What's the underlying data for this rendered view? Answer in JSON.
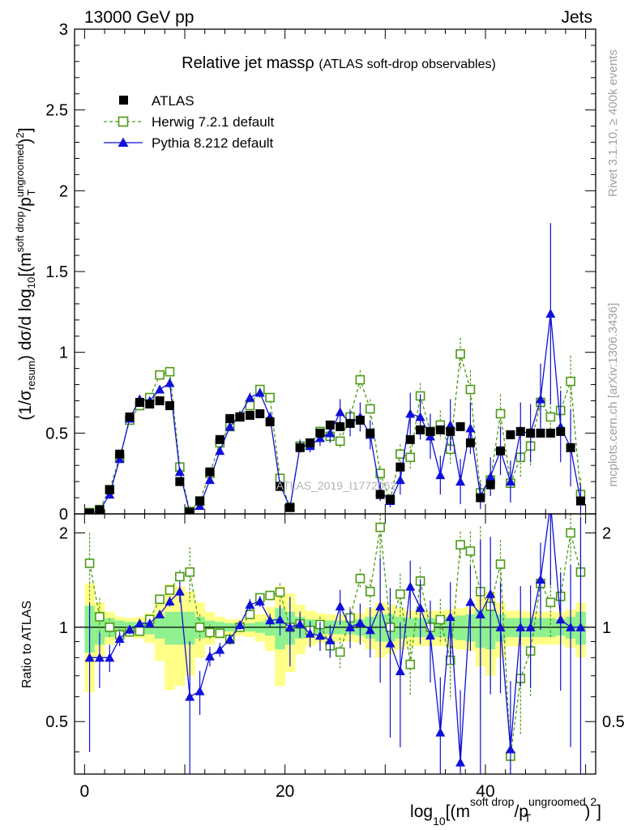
{
  "header": {
    "left": "13000 GeV pp",
    "right": "Jets",
    "side_rivet": "Rivet 3.1.10, ≥ 400k events",
    "side_mcplots": "mcplots.cern.ch [arXiv:1306.3436]",
    "watermark": "ATLAS_2019_I1772062"
  },
  "chart_data": {
    "type": "line",
    "title": "Relative jet massρ",
    "subtitle": "(ATLAS soft-drop observables)",
    "ylabel": "(1/σ_resum) dσ/d log10[(m^soft drop/pT^ungroomed)^2]",
    "ylabel_parts": {
      "a": "(1/σ",
      "a_sub": "resum",
      "b": ") dσ/d log",
      "b_sub": "10",
      "c": "[(m",
      "c_sup": "soft drop",
      "d": "/p",
      "d_sup": "ungroomed",
      "d_sub": "T",
      "e": ")",
      "e_sup": "2",
      "f": "]"
    },
    "xlabel_parts": {
      "a": "log",
      "a_sub": "10",
      "b": "[(m",
      "b_sup": "soft drop",
      "c": "/p",
      "c_sup": "ungroomed",
      "c_sub": "T",
      "d": ")",
      "d_sup": "2",
      "e": "]"
    },
    "ratio_ylabel": "Ratio to ATLAS",
    "xlim": [
      -1,
      51
    ],
    "ylim": [
      0,
      3
    ],
    "ratio_ylim": [
      0.34,
      2.3
    ],
    "x_ticks": [
      0,
      20,
      40
    ],
    "x_tick_labels": [
      "0",
      "20",
      "40"
    ],
    "y_ticks": [
      0,
      0.5,
      1,
      1.5,
      2,
      2.5,
      3
    ],
    "y_tick_labels": [
      "0",
      "0.5",
      "1",
      "1.5",
      "2",
      "2.5",
      "3"
    ],
    "ratio_y_ticks": [
      0.5,
      1,
      2
    ],
    "ratio_y_tick_labels": [
      "0.5",
      "1",
      "2"
    ],
    "legend": [
      "ATLAS",
      "Herwig 7.2.1 default",
      "Pythia 8.212 default"
    ],
    "colors": {
      "atlas": "#000000",
      "herwig": "#4c9a16",
      "pythia": "#1010d8",
      "band_inner": "#8ef08e",
      "band_outer": "#ffff88"
    },
    "x": [
      0.5,
      1.5,
      2.5,
      3.5,
      4.5,
      5.5,
      6.5,
      7.5,
      8.5,
      9.5,
      10.5,
      11.5,
      12.5,
      13.5,
      14.5,
      15.5,
      16.5,
      17.5,
      18.5,
      19.5,
      20.5,
      21.5,
      22.5,
      23.5,
      24.5,
      25.5,
      26.5,
      27.5,
      28.5,
      29.5,
      30.5,
      31.5,
      32.5,
      33.5,
      34.5,
      35.5,
      36.5,
      37.5,
      38.5,
      39.5,
      40.5,
      41.5,
      42.5,
      43.5,
      44.5,
      45.5,
      46.5,
      47.5,
      48.5,
      49.5
    ],
    "series": [
      {
        "name": "ATLAS",
        "values": [
          0.005,
          0.025,
          0.15,
          0.37,
          0.6,
          0.69,
          0.68,
          0.7,
          0.67,
          0.2,
          0.01,
          0.08,
          0.26,
          0.46,
          0.59,
          0.6,
          0.61,
          0.62,
          0.57,
          0.17,
          0.04,
          0.41,
          0.44,
          0.5,
          0.55,
          0.54,
          0.56,
          0.58,
          0.5,
          0.12,
          0.09,
          0.29,
          0.46,
          0.52,
          0.51,
          0.52,
          0.51,
          0.54,
          0.44,
          0.1,
          0.18,
          0.39,
          0.49,
          0.51,
          0.5,
          0.5,
          0.5,
          0.51,
          0.41,
          0.08
        ]
      },
      {
        "name": "Herwig 7.2.1 default",
        "values": [
          0.008,
          0.027,
          0.15,
          0.35,
          0.58,
          0.67,
          0.72,
          0.86,
          0.88,
          0.29,
          0.015,
          0.08,
          0.25,
          0.44,
          0.54,
          0.6,
          0.67,
          0.77,
          0.72,
          0.22,
          0.04,
          0.42,
          0.43,
          0.51,
          0.48,
          0.45,
          0.6,
          0.83,
          0.65,
          0.25,
          0.09,
          0.37,
          0.35,
          0.73,
          0.51,
          0.55,
          0.4,
          0.99,
          0.77,
          0.13,
          0.21,
          0.62,
          0.19,
          0.35,
          0.42,
          0.69,
          0.6,
          0.64,
          0.82,
          0.12
        ]
      },
      {
        "name": "Pythia 8.212 default",
        "values": [
          0.004,
          0.02,
          0.12,
          0.34,
          0.59,
          0.71,
          0.7,
          0.77,
          0.81,
          0.26,
          0.006,
          0.05,
          0.21,
          0.39,
          0.54,
          0.61,
          0.72,
          0.75,
          0.6,
          0.18,
          0.04,
          0.42,
          0.42,
          0.47,
          0.5,
          0.63,
          0.56,
          0.6,
          0.49,
          0.14,
          0.08,
          0.21,
          0.62,
          0.6,
          0.48,
          0.24,
          0.55,
          0.2,
          0.53,
          0.11,
          0.23,
          0.39,
          0.2,
          0.51,
          0.5,
          0.71,
          1.24,
          0.54,
          0.41,
          0.08
        ]
      }
    ],
    "errors": {
      "herwig": [
        0.002,
        0.004,
        0.01,
        0.015,
        0.02,
        0.02,
        0.02,
        0.02,
        0.02,
        0.015,
        0.003,
        0.008,
        0.015,
        0.02,
        0.02,
        0.02,
        0.02,
        0.02,
        0.02,
        0.015,
        0.008,
        0.03,
        0.03,
        0.03,
        0.04,
        0.05,
        0.05,
        0.06,
        0.06,
        0.05,
        0.03,
        0.06,
        0.07,
        0.08,
        0.08,
        0.09,
        0.1,
        0.1,
        0.12,
        0.08,
        0.1,
        0.12,
        0.1,
        0.12,
        0.12,
        0.14,
        0.14,
        0.15,
        0.16,
        0.1
      ],
      "pythia": [
        0.002,
        0.004,
        0.012,
        0.018,
        0.02,
        0.02,
        0.02,
        0.02,
        0.03,
        0.02,
        0.003,
        0.008,
        0.015,
        0.02,
        0.02,
        0.02,
        0.03,
        0.03,
        0.03,
        0.02,
        0.01,
        0.04,
        0.04,
        0.05,
        0.06,
        0.08,
        0.08,
        0.09,
        0.09,
        0.06,
        0.04,
        0.09,
        0.13,
        0.14,
        0.14,
        0.12,
        0.16,
        0.14,
        0.16,
        0.08,
        0.12,
        0.15,
        0.13,
        0.18,
        0.18,
        0.22,
        0.56,
        0.22,
        0.24,
        0.1
      ]
    },
    "ratio_band_inner": [
      0.17,
      0.12,
      0.07,
      0.05,
      0.04,
      0.04,
      0.05,
      0.08,
      0.12,
      0.12,
      0.12,
      0.08,
      0.05,
      0.04,
      0.03,
      0.03,
      0.03,
      0.04,
      0.06,
      0.15,
      0.12,
      0.08,
      0.06,
      0.05,
      0.05,
      0.05,
      0.05,
      0.06,
      0.08,
      0.1,
      0.1,
      0.08,
      0.07,
      0.07,
      0.07,
      0.07,
      0.08,
      0.09,
      0.1,
      0.14,
      0.15,
      0.1,
      0.07,
      0.07,
      0.07,
      0.07,
      0.07,
      0.06,
      0.08,
      0.12
    ],
    "ratio_band_outer": [
      0.38,
      0.2,
      0.12,
      0.08,
      0.07,
      0.08,
      0.11,
      0.22,
      0.37,
      0.35,
      0.3,
      0.2,
      0.12,
      0.08,
      0.06,
      0.06,
      0.07,
      0.1,
      0.16,
      0.35,
      0.28,
      0.18,
      0.13,
      0.11,
      0.1,
      0.1,
      0.1,
      0.11,
      0.15,
      0.2,
      0.18,
      0.15,
      0.13,
      0.13,
      0.13,
      0.13,
      0.14,
      0.15,
      0.16,
      0.25,
      0.3,
      0.2,
      0.13,
      0.13,
      0.12,
      0.12,
      0.12,
      0.12,
      0.14,
      0.2
    ]
  }
}
